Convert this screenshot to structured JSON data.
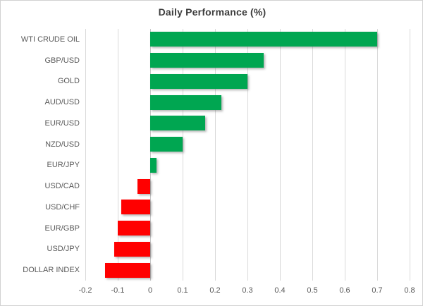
{
  "chart_data": {
    "type": "bar",
    "orientation": "horizontal",
    "title": "Daily Performance (%)",
    "categories": [
      "WTI CRUDE OIL",
      "GBP/USD",
      "GOLD",
      "AUD/USD",
      "EUR/USD",
      "NZD/USD",
      "EUR/JPY",
      "USD/CAD",
      "USD/CHF",
      "EUR/GBP",
      "USD/JPY",
      "DOLLAR INDEX"
    ],
    "values": [
      0.7,
      0.35,
      0.3,
      0.22,
      0.17,
      0.1,
      0.02,
      -0.04,
      -0.09,
      -0.1,
      -0.11,
      -0.14
    ],
    "xlim": [
      -0.2,
      0.8
    ],
    "x_tick_labels": [
      "-0.2",
      "-0.1",
      "0",
      "0.1",
      "0.2",
      "0.3",
      "0.4",
      "0.5",
      "0.6",
      "0.7",
      "0.8"
    ],
    "x_tick_values": [
      -0.2,
      -0.1,
      0,
      0.1,
      0.2,
      0.3,
      0.4,
      0.5,
      0.6,
      0.7,
      0.8
    ],
    "xlabel": "",
    "ylabel": "",
    "legend": "none",
    "grid": "vertical",
    "colors": {
      "positive_bar": "#00A651",
      "negative_bar": "#FF0000",
      "gridline": "#D9D9D9",
      "zero_axis": "#C6C6C6",
      "title_text": "#3D3D3D",
      "label_text": "#595959"
    }
  }
}
